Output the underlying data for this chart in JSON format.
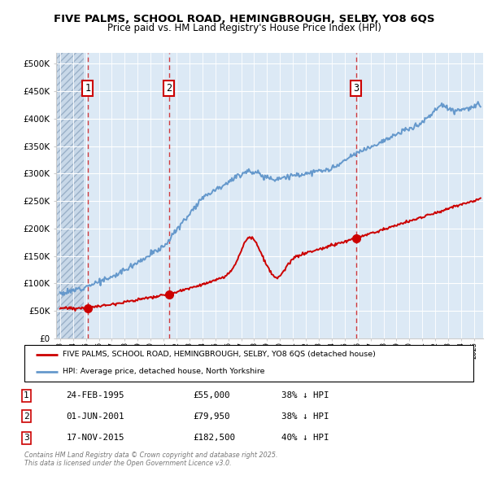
{
  "title_line1": "FIVE PALMS, SCHOOL ROAD, HEMINGBROUGH, SELBY, YO8 6QS",
  "title_line2": "Price paid vs. HM Land Registry's House Price Index (HPI)",
  "ylim": [
    0,
    520000
  ],
  "yticks": [
    0,
    50000,
    100000,
    150000,
    200000,
    250000,
    300000,
    350000,
    400000,
    450000,
    500000
  ],
  "ytick_labels": [
    "£0",
    "£50K",
    "£100K",
    "£150K",
    "£200K",
    "£250K",
    "£300K",
    "£350K",
    "£400K",
    "£450K",
    "£500K"
  ],
  "background_color": "#dce9f5",
  "sale_prices": [
    55000,
    79950,
    182500
  ],
  "sale_labels": [
    "1",
    "2",
    "3"
  ],
  "sale_year_decimals": [
    1995.147,
    2001.414,
    2015.878
  ],
  "legend_property": "FIVE PALMS, SCHOOL ROAD, HEMINGBROUGH, SELBY, YO8 6QS (detached house)",
  "legend_hpi": "HPI: Average price, detached house, North Yorkshire",
  "table_rows": [
    [
      "1",
      "24-FEB-1995",
      "£55,000",
      "38% ↓ HPI"
    ],
    [
      "2",
      "01-JUN-2001",
      "£79,950",
      "38% ↓ HPI"
    ],
    [
      "3",
      "17-NOV-2015",
      "£182,500",
      "40% ↓ HPI"
    ]
  ],
  "copyright_text": "Contains HM Land Registry data © Crown copyright and database right 2025.\nThis data is licensed under the Open Government Licence v3.0.",
  "property_color": "#cc0000",
  "hpi_color": "#6699cc",
  "xlim_start": 1992.7,
  "xlim_end": 2025.7,
  "hatch_end": 1994.85
}
